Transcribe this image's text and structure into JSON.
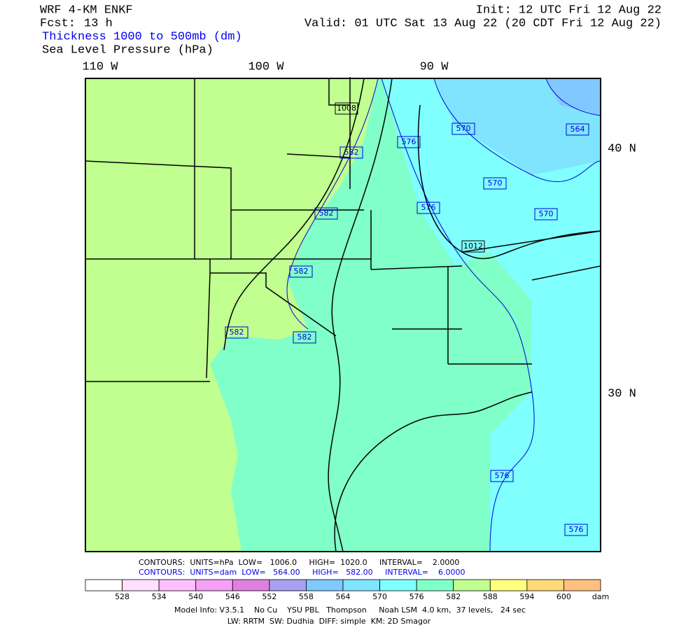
{
  "header": {
    "model": "WRF 4-KM ENKF",
    "fcst_label": "Fcst:",
    "fcst": "13 h",
    "init": "Init: 12 UTC Fri 12 Aug 22",
    "valid": "Valid: 01 UTC Sat 13 Aug 22 (20 CDT Fri 12 Aug 22)",
    "field1": "Thickness 1000 to 500mb (dm)",
    "field2": "Sea Level Pressure (hPa)"
  },
  "map": {
    "lon_labels": [
      "110 W",
      "100 W",
      "90 W"
    ],
    "lat_labels": [
      "40 N",
      "30 N"
    ],
    "contour_labels": [
      "1008",
      "582",
      "576",
      "570",
      "564",
      "582",
      "570",
      "576",
      "570",
      "1012",
      "582",
      "582",
      "582",
      "576",
      "576"
    ]
  },
  "footer": {
    "contours_slp": "CONTOURS:  UNITS=hPa  LOW=   1006.0     HIGH=  1020.0     INTERVAL=    2.0000",
    "contours_thk": "CONTOURS:  UNITS=dam  LOW=   564.00     HIGH=   582.00     INTERVAL=    6.0000",
    "model_info": "Model Info: V3.5.1    No Cu    YSU PBL   Thompson     Noah LSM  4.0 km,  37 levels,   24 sec",
    "physics": "LW: RRTM  SW: Dudhia  DIFF: simple  KM: 2D Smagor"
  },
  "colorbar": {
    "colors": [
      "#ffffff",
      "#ffe0ff",
      "#ffc0ff",
      "#f4a0f4",
      "#e080e0",
      "#a8a0f0",
      "#80c8ff",
      "#80e4ff",
      "#80ffff",
      "#80ffc8",
      "#c0ff90",
      "#ffff80",
      "#ffd878",
      "#ffc080"
    ],
    "labels": [
      528,
      534,
      540,
      546,
      552,
      558,
      564,
      570,
      576,
      582,
      588,
      594,
      600
    ],
    "unit": "dam"
  }
}
